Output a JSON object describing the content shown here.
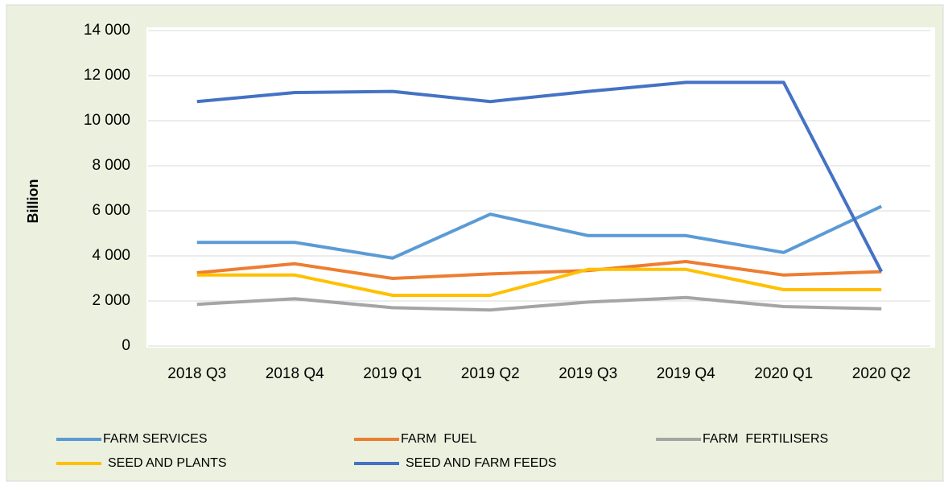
{
  "chart_data": {
    "type": "line",
    "y_label": "Billion",
    "categories": [
      "2018 Q3",
      "2018 Q4",
      "2019 Q1",
      "2019 Q2",
      "2019 Q3",
      "2019 Q4",
      "2020 Q1",
      "2020 Q2"
    ],
    "series": [
      {
        "name": "FARM SERVICES",
        "color": "#5b9bd5",
        "values": [
          4600,
          4600,
          3900,
          5850,
          4900,
          4900,
          4150,
          6200
        ]
      },
      {
        "name": "FARM  FUEL",
        "color": "#ed7d31",
        "values": [
          3250,
          3650,
          3000,
          3200,
          3350,
          3750,
          3150,
          3300
        ]
      },
      {
        "name": "FARM  FERTILISERS",
        "color": "#a5a5a5",
        "values": [
          1850,
          2100,
          1700,
          1600,
          1950,
          2150,
          1750,
          1650
        ]
      },
      {
        "name": "SEED AND PLANTS",
        "color": "#ffc000",
        "values": [
          3150,
          3150,
          2250,
          2250,
          3400,
          3400,
          2500,
          2500
        ]
      },
      {
        "name": "SEED AND FARM FEEDS",
        "color": "#4472c4",
        "values": [
          10850,
          11250,
          11300,
          10850,
          11300,
          11700,
          11700,
          3300
        ]
      }
    ],
    "ylim": [
      0,
      14000
    ],
    "yticks": [
      0,
      {
        "value": 2000,
        "label": "2 000"
      },
      {
        "value": 4000,
        "label": "4 000"
      },
      {
        "value": 6000,
        "label": "6 000"
      },
      {
        "value": 8000,
        "label": "8 000"
      },
      {
        "value": 10000,
        "label": "10 000"
      },
      {
        "value": 12000,
        "label": "12 000"
      },
      {
        "value": 14000,
        "label": "14 000"
      }
    ],
    "grid": true
  }
}
